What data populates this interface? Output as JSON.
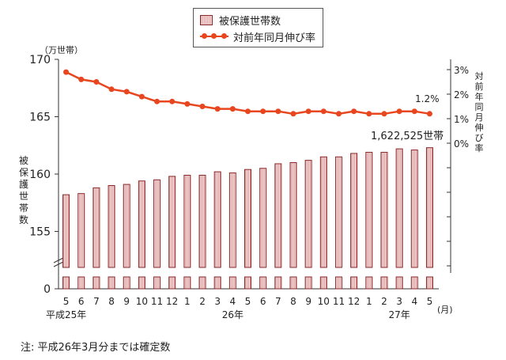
{
  "legend": {
    "bar_label": "被保護世帯数",
    "line_label": "対前年同月伸び率"
  },
  "left_unit": "（万世帯）",
  "left_axis_title": "被保護世帯数",
  "right_axis_title": "対前年同月伸び率",
  "x_unit": "(月)",
  "annotation_value": "1,622,525世帯",
  "annotation_rate": "1.2%",
  "note": "注: 平成26年3月分までは確定数",
  "colors": {
    "bar_fill": "#fbe3e3",
    "bar_stroke": "#8a2a2a",
    "line": "#e8461f"
  },
  "chart_data": {
    "type": "bar",
    "categories": [
      "5",
      "6",
      "7",
      "8",
      "9",
      "10",
      "11",
      "12",
      "1",
      "2",
      "3",
      "4",
      "5",
      "6",
      "7",
      "8",
      "9",
      "10",
      "11",
      "12",
      "1",
      "2",
      "3",
      "4",
      "5"
    ],
    "year_labels": [
      {
        "text": "平成25年",
        "at_index": 0
      },
      {
        "text": "26年",
        "at_index": 11
      },
      {
        "text": "27年",
        "at_index": 22
      }
    ],
    "series": [
      {
        "name": "被保護世帯数",
        "kind": "bar",
        "axis": "left",
        "values": [
          158.2,
          158.3,
          158.8,
          159.0,
          159.1,
          159.4,
          159.5,
          159.8,
          159.9,
          159.9,
          160.2,
          160.1,
          160.4,
          160.5,
          160.9,
          161.0,
          161.2,
          161.5,
          161.5,
          161.8,
          161.9,
          161.9,
          162.2,
          162.1,
          162.3
        ]
      },
      {
        "name": "対前年同月伸び率",
        "kind": "line",
        "axis": "right",
        "unit": "%",
        "values": [
          2.9,
          2.6,
          2.5,
          2.2,
          2.1,
          1.9,
          1.7,
          1.7,
          1.6,
          1.5,
          1.4,
          1.4,
          1.3,
          1.3,
          1.3,
          1.2,
          1.3,
          1.3,
          1.2,
          1.3,
          1.2,
          1.2,
          1.3,
          1.3,
          1.2
        ]
      }
    ],
    "left_axis": {
      "ticks": [
        170,
        165,
        160,
        155,
        0
      ],
      "ylim": [
        0,
        170
      ],
      "break_between": [
        155,
        0
      ]
    },
    "right_axis": {
      "tick_labels": [
        "3%",
        "2%",
        "1%",
        "0%"
      ],
      "ylim": [
        -6,
        3.3
      ]
    },
    "grid": false
  }
}
